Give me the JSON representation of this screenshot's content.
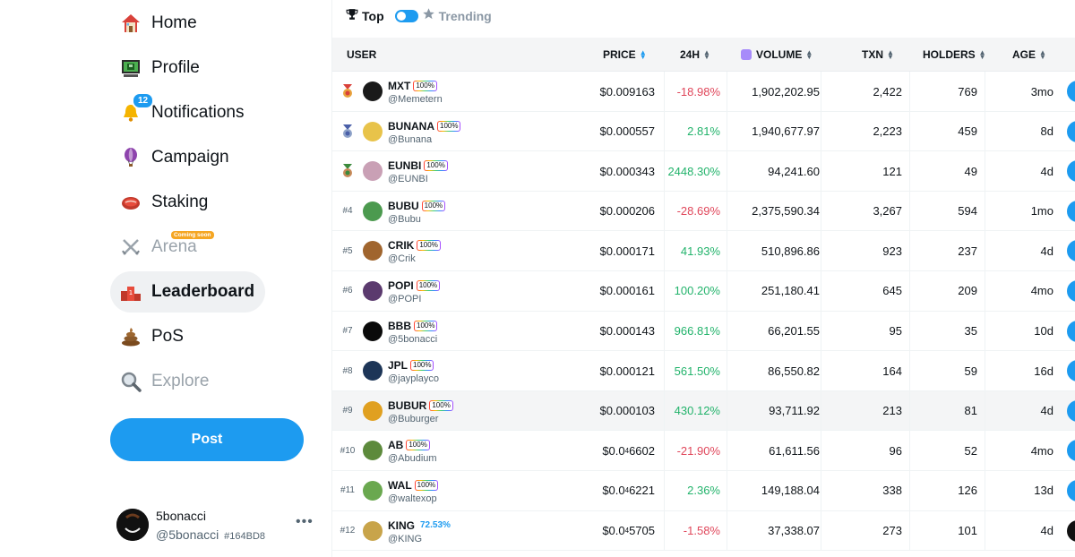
{
  "sidebar": {
    "items": [
      {
        "label": "Home",
        "icon": "house-icon"
      },
      {
        "label": "Profile",
        "icon": "computer-icon"
      },
      {
        "label": "Notifications",
        "icon": "bell-icon",
        "badge": "12"
      },
      {
        "label": "Campaign",
        "icon": "hot-air-balloon-icon"
      },
      {
        "label": "Staking",
        "icon": "steak-icon"
      },
      {
        "label": "Arena",
        "icon": "crossed-swords-icon",
        "tag": "Coming soon"
      },
      {
        "label": "Leaderboard",
        "icon": "podium-icon"
      },
      {
        "label": "PoS",
        "icon": "poop-icon"
      },
      {
        "label": "Explore",
        "icon": "magnifier-icon"
      }
    ],
    "post_label": "Post",
    "account": {
      "name": "5bonacci",
      "handle": "@5bonacci",
      "code": "#164BD8",
      "more": "•••"
    }
  },
  "toggle": {
    "top_label": "Top",
    "trending_label": "Trending"
  },
  "table": {
    "headers": {
      "user": "USER",
      "price": "PRICE",
      "change": "24H",
      "volume": "VOLUME",
      "txn": "TXN",
      "holders": "HOLDERS",
      "age": "AGE"
    },
    "rows": [
      {
        "rank": "",
        "medal": "gold",
        "name": "MXT",
        "pct": "100%",
        "handle": "@Memetern",
        "price_pre": "$0.009163",
        "price_sub": "",
        "price_post": "",
        "change": "-18.98%",
        "dir": "down",
        "volume": "1,902,202.95",
        "txn": "2,422",
        "holders": "769",
        "age": "3mo",
        "avatar": "#1a1a1a"
      },
      {
        "rank": "",
        "medal": "silver",
        "name": "BUNANA",
        "pct": "100%",
        "handle": "@Bunana",
        "price_pre": "$0.000557",
        "price_sub": "",
        "price_post": "",
        "change": "2.81%",
        "dir": "up",
        "volume": "1,940,677.97",
        "txn": "2,223",
        "holders": "459",
        "age": "8d",
        "avatar": "#e8c34a"
      },
      {
        "rank": "",
        "medal": "bronze",
        "name": "EUNBI",
        "pct": "100%",
        "handle": "@EUNBI",
        "price_pre": "$0.000343",
        "price_sub": "",
        "price_post": "",
        "change": "2448.30%",
        "dir": "up",
        "volume": "94,241.60",
        "txn": "121",
        "holders": "49",
        "age": "4d",
        "avatar": "#c9a0b5"
      },
      {
        "rank": "#4",
        "medal": "",
        "name": "BUBU",
        "pct": "100%",
        "handle": "@Bubu",
        "price_pre": "$0.000206",
        "price_sub": "",
        "price_post": "",
        "change": "-28.69%",
        "dir": "down",
        "volume": "2,375,590.34",
        "txn": "3,267",
        "holders": "594",
        "age": "1mo",
        "avatar": "#4c9a4f"
      },
      {
        "rank": "#5",
        "medal": "",
        "name": "CRIK",
        "pct": "100%",
        "handle": "@Crik",
        "price_pre": "$0.000171",
        "price_sub": "",
        "price_post": "",
        "change": "41.93%",
        "dir": "up",
        "volume": "510,896.86",
        "txn": "923",
        "holders": "237",
        "age": "4d",
        "avatar": "#a0652e"
      },
      {
        "rank": "#6",
        "medal": "",
        "name": "POPI",
        "pct": "100%",
        "handle": "@POPI",
        "price_pre": "$0.000161",
        "price_sub": "",
        "price_post": "",
        "change": "100.20%",
        "dir": "up",
        "volume": "251,180.41",
        "txn": "645",
        "holders": "209",
        "age": "4mo",
        "avatar": "#5b3a6e"
      },
      {
        "rank": "#7",
        "medal": "",
        "name": "BBB",
        "pct": "100%",
        "handle": "@5bonacci",
        "price_pre": "$0.000143",
        "price_sub": "",
        "price_post": "",
        "change": "966.81%",
        "dir": "up",
        "volume": "66,201.55",
        "txn": "95",
        "holders": "35",
        "age": "10d",
        "avatar": "#0a0a0a"
      },
      {
        "rank": "#8",
        "medal": "",
        "name": "JPL",
        "pct": "100%",
        "handle": "@jayplayco",
        "price_pre": "$0.000121",
        "price_sub": "",
        "price_post": "",
        "change": "561.50%",
        "dir": "up",
        "volume": "86,550.82",
        "txn": "164",
        "holders": "59",
        "age": "16d",
        "avatar": "#1d3557"
      },
      {
        "rank": "#9",
        "medal": "",
        "name": "BUBUR",
        "pct": "100%",
        "handle": "@Buburger",
        "price_pre": "$0.000103",
        "price_sub": "",
        "price_post": "",
        "change": "430.12%",
        "dir": "up",
        "volume": "93,711.92",
        "txn": "213",
        "holders": "81",
        "age": "4d",
        "avatar": "#e0a020",
        "highlight": true
      },
      {
        "rank": "#10",
        "medal": "",
        "name": "AB",
        "pct": "100%",
        "handle": "@Abudium",
        "price_pre": "$0.0",
        "price_sub": "4",
        "price_post": "6602",
        "change": "-21.90%",
        "dir": "down",
        "volume": "61,611.56",
        "txn": "96",
        "holders": "52",
        "age": "4mo",
        "avatar": "#5d8a3c"
      },
      {
        "rank": "#11",
        "medal": "",
        "name": "WAL",
        "pct": "100%",
        "handle": "@waltexop",
        "price_pre": "$0.0",
        "price_sub": "4",
        "price_post": "6221",
        "change": "2.36%",
        "dir": "up",
        "volume": "149,188.04",
        "txn": "338",
        "holders": "126",
        "age": "13d",
        "avatar": "#6aa84f"
      },
      {
        "rank": "#12",
        "medal": "",
        "name": "KING",
        "pct": "72.53%",
        "pct_plain": true,
        "handle": "@KING",
        "price_pre": "$0.0",
        "price_sub": "4",
        "price_post": "5705",
        "change": "-1.58%",
        "dir": "down",
        "volume": "37,338.07",
        "txn": "273",
        "holders": "101",
        "age": "4d",
        "avatar": "#c8a44a",
        "action_dark": true
      }
    ]
  },
  "colors": {
    "accent": "#1d9bf0",
    "up": "#22b36b",
    "down": "#e0475b",
    "header_bg": "#f4f5f6"
  }
}
